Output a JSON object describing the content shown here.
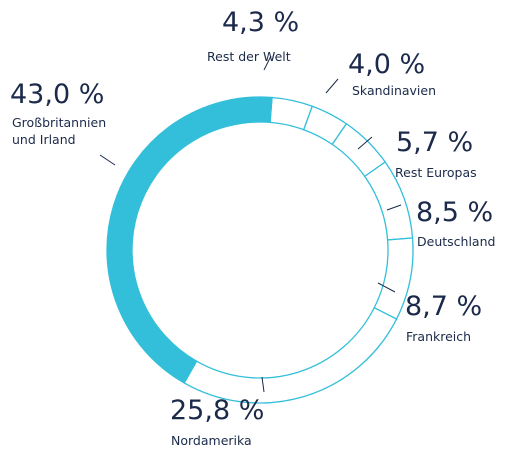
{
  "chart_data": {
    "type": "donut",
    "categories": [
      "Rest der Welt",
      "Skandinavien",
      "Rest Europas",
      "Deutschland",
      "Frankreich",
      "Nordamerika",
      "Großbritannien und Irland"
    ],
    "values": [
      4.3,
      4.0,
      5.7,
      8.5,
      8.7,
      25.8,
      43.0
    ],
    "value_labels": [
      "4,3 %",
      "4,0 %",
      "5,7 %",
      "8,5 %",
      "8,7 %",
      "25,8 %",
      "43,0 %"
    ],
    "colors": [
      "#ffffff",
      "#ffffff",
      "#ffffff",
      "#ffffff",
      "#ffffff",
      "#ffffff",
      "#33bfd9"
    ],
    "stroke": "#33bfd9"
  }
}
